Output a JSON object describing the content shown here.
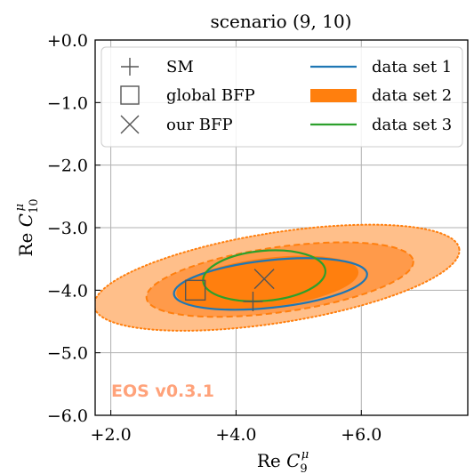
{
  "chart_data": {
    "type": "contour",
    "title": "scenario (9, 10)",
    "xlabel": "Re C9μ",
    "ylabel": "Re C10μ",
    "xlim": [
      1.75,
      7.7
    ],
    "ylim": [
      -6.0,
      0.0
    ],
    "x_ticks": [
      2.0,
      4.0,
      6.0
    ],
    "x_tick_labels": [
      "+2.0",
      "+4.0",
      "+6.0"
    ],
    "y_ticks": [
      0.0,
      -1.0,
      -2.0,
      -3.0,
      -4.0,
      -5.0,
      -6.0
    ],
    "y_tick_labels": [
      "+0.0",
      "−1.0",
      "−2.0",
      "−3.0",
      "−4.0",
      "−5.0",
      "−6.0"
    ],
    "grid": true,
    "legend_position": "top",
    "markers": [
      {
        "name": "SM",
        "symbol": "plus",
        "x": 4.27,
        "y": -4.18
      },
      {
        "name": "global BFP",
        "symbol": "square",
        "x": 3.35,
        "y": -4.0
      },
      {
        "name": "our BFP",
        "symbol": "cross",
        "x": 4.45,
        "y": -3.82
      }
    ],
    "series": [
      {
        "name": "data set 1",
        "style": "line",
        "color": "#1f77b4",
        "contours": [
          {
            "center": [
              4.55,
              -3.9
            ],
            "rx": 1.55,
            "ry": 0.38,
            "angle": -6
          }
        ]
      },
      {
        "name": "data set 2",
        "style": "filled",
        "color": "#ff7f0e",
        "contours": [
          {
            "level": "outer",
            "center": [
              4.65,
              -3.8
            ],
            "rx": 2.95,
            "ry": 0.72,
            "angle": -9
          },
          {
            "level": "middle",
            "center": [
              4.7,
              -3.83
            ],
            "rx": 2.15,
            "ry": 0.52,
            "angle": -8
          },
          {
            "level": "inner",
            "center": [
              4.5,
              -3.88
            ],
            "rx": 1.45,
            "ry": 0.38,
            "angle": -7
          }
        ]
      },
      {
        "name": "data set 3",
        "style": "line",
        "color": "#2ca02c",
        "contours": [
          {
            "center": [
              4.45,
              -3.77
            ],
            "rx": 0.98,
            "ry": 0.4,
            "angle": -5
          }
        ]
      }
    ],
    "watermark": "EOS v0.3.1"
  },
  "colors": {
    "set1": "#1f77b4",
    "set2": "#ff7f0e",
    "set3": "#2ca02c",
    "outer_fill": "#ffbf8a",
    "middle_fill": "#ff9a4a",
    "inner_fill": "#ff7f0e",
    "watermark": "#ffa27a",
    "marker": "#555555"
  }
}
